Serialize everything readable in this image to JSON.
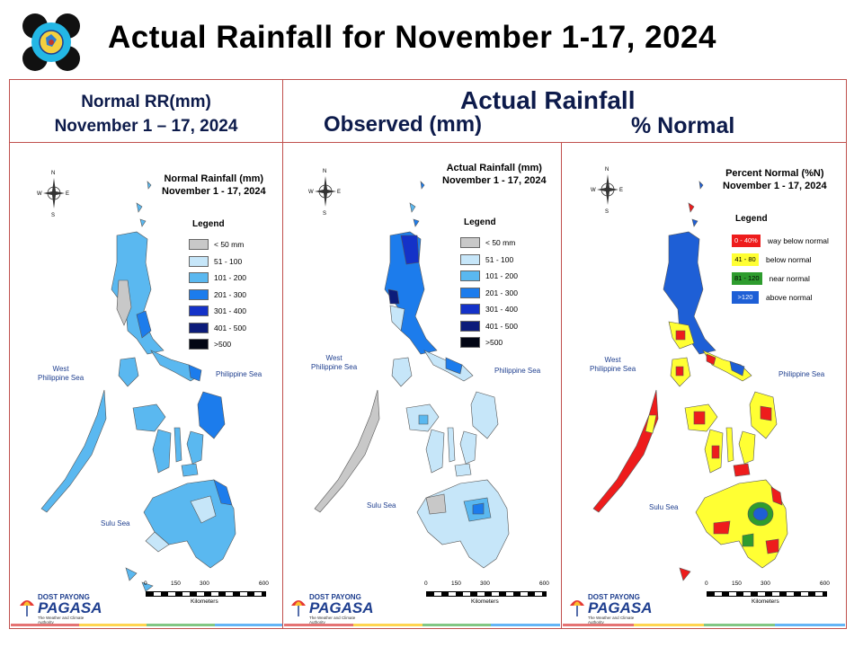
{
  "slide_title": "Actual Rainfall for November 1-17, 2024",
  "header": {
    "left_line1": "Normal RR(mm)",
    "left_line2": "November 1 – 17, 2024",
    "main": "Actual Rainfall",
    "observed": "Observed (mm)",
    "percent": "% Normal"
  },
  "colors": {
    "frame": "#c0504d",
    "header_text": "#0d1b4b",
    "rain_bins": [
      "#c8c8c8",
      "#c6e6f9",
      "#5ab8f0",
      "#1c7cec",
      "#1432c8",
      "#0c1c7a",
      "#020614"
    ],
    "pct_bins": [
      "#ee1c1c",
      "#ffff33",
      "#2e9c2e",
      "#1e5fd6"
    ]
  },
  "maps": [
    {
      "id": "normal",
      "title_line1": "Normal Rainfall (mm)",
      "title_line2": "November 1 - 17, 2024",
      "legend_title": "Legend",
      "legend": [
        "< 50 mm",
        "51 - 100",
        "101 - 200",
        "201 - 300",
        "301 - 400",
        "401 - 500",
        ">500"
      ],
      "sea_west_line1": "West",
      "sea_west_line2": "Philippine Sea",
      "sea_east": "Philippine Sea",
      "sea_south": "Sulu Sea"
    },
    {
      "id": "observed",
      "title_line1": "Actual Rainfall (mm)",
      "title_line2": "November 1 - 17, 2024",
      "legend_title": "Legend",
      "legend": [
        "< 50 mm",
        "51 - 100",
        "101 - 200",
        "201 - 300",
        "301 - 400",
        "401 - 500",
        ">500"
      ],
      "sea_west_line1": "West",
      "sea_west_line2": "Philippine Sea",
      "sea_east": "Philippine Sea",
      "sea_south": "Sulu Sea"
    },
    {
      "id": "percent",
      "title_line1": "Percent Normal (%N)",
      "title_line2": "November 1 - 17, 2024",
      "legend_title": "Legend",
      "legend": [
        {
          "range": "0 - 40%",
          "desc": "way below normal"
        },
        {
          "range": "41 - 80",
          "desc": "below normal"
        },
        {
          "range": "81 - 120",
          "desc": "near normal"
        },
        {
          "range": ">120",
          "desc": "above normal"
        }
      ],
      "sea_west_line1": "West",
      "sea_west_line2": "Philippine Sea",
      "sea_east": "Philippine Sea",
      "sea_south": "Sulu Sea"
    }
  ],
  "compass": {
    "n": "N",
    "s": "S",
    "e": "E",
    "w": "W"
  },
  "scale": {
    "ticks": [
      "0",
      "150",
      "300",
      "600"
    ],
    "unit": "Kilometers"
  },
  "pagasa": {
    "small": "DOST PAYONG",
    "name": "PAGASA",
    "tagline": "The Weather and Climate Authority"
  },
  "logo_icon": "pagasa-seal-icon"
}
